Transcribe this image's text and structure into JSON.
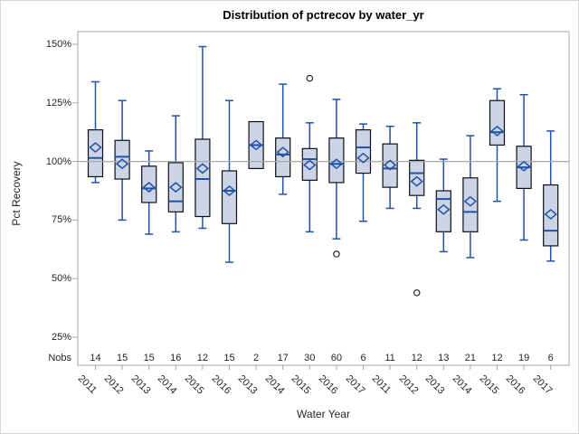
{
  "chart_data": {
    "type": "boxplot",
    "title": "Distribution of pctrecov by water_yr",
    "ylabel": "Pct Recovery",
    "xlabel": "Water Year",
    "nobs_label": "Nobs",
    "grid": false,
    "reference_line": 100,
    "y_axis": {
      "ticks": [
        150,
        125,
        100,
        75,
        50,
        25
      ],
      "suffix": "%",
      "range_shown": [
        13,
        155
      ]
    },
    "groups": [
      {
        "year": "2011",
        "nobs": 14,
        "whisker_low": 91,
        "q1": 93.5,
        "median": 101.5,
        "mean": 106,
        "q3": 113.5,
        "whisker_high": 134,
        "outliers": []
      },
      {
        "year": "2012",
        "nobs": 15,
        "whisker_low": 75,
        "q1": 92.5,
        "median": 102,
        "mean": 99,
        "q3": 109,
        "whisker_high": 126,
        "outliers": []
      },
      {
        "year": "2013",
        "nobs": 15,
        "whisker_low": 69,
        "q1": 82.5,
        "median": 88.5,
        "mean": 89,
        "q3": 98,
        "whisker_high": 104.5,
        "outliers": []
      },
      {
        "year": "2014",
        "nobs": 16,
        "whisker_low": 70,
        "q1": 78.5,
        "median": 83,
        "mean": 89,
        "q3": 99.5,
        "whisker_high": 119.5,
        "outliers": []
      },
      {
        "year": "2015",
        "nobs": 12,
        "whisker_low": 71.5,
        "q1": 76.5,
        "median": 92.5,
        "mean": 97,
        "q3": 109.5,
        "whisker_high": 149,
        "outliers": []
      },
      {
        "year": "2016",
        "nobs": 15,
        "whisker_low": 57,
        "q1": 73.5,
        "median": 87.5,
        "mean": 87.5,
        "q3": 96,
        "whisker_high": 126,
        "outliers": []
      },
      {
        "year": "2013",
        "nobs": 2,
        "whisker_low": null,
        "q1": 97,
        "median": 107,
        "mean": 107,
        "q3": 117,
        "whisker_high": null,
        "outliers": []
      },
      {
        "year": "2014",
        "nobs": 17,
        "whisker_low": 86,
        "q1": 93.5,
        "median": 103,
        "mean": 104,
        "q3": 110,
        "whisker_high": 133,
        "outliers": []
      },
      {
        "year": "2015",
        "nobs": 30,
        "whisker_low": 70,
        "q1": 92,
        "median": 101,
        "mean": 98.5,
        "q3": 105.5,
        "whisker_high": 116.5,
        "outliers": [
          135.5
        ]
      },
      {
        "year": "2016",
        "nobs": 60,
        "whisker_low": 67,
        "q1": 91,
        "median": 99,
        "mean": 99,
        "q3": 110,
        "whisker_high": 126.5,
        "outliers": [
          60.5
        ]
      },
      {
        "year": "2017",
        "nobs": 6,
        "whisker_low": 74.5,
        "q1": 95,
        "median": 106,
        "mean": 101.5,
        "q3": 113.5,
        "whisker_high": 116,
        "outliers": []
      },
      {
        "year": "2011",
        "nobs": 11,
        "whisker_low": 80,
        "q1": 89,
        "median": 97,
        "mean": 98.5,
        "q3": 107.5,
        "whisker_high": 115,
        "outliers": []
      },
      {
        "year": "2012",
        "nobs": 12,
        "whisker_low": 80,
        "q1": 85.5,
        "median": 95,
        "mean": 91.5,
        "q3": 100.5,
        "whisker_high": 116.5,
        "outliers": [
          44
        ]
      },
      {
        "year": "2013",
        "nobs": 13,
        "whisker_low": 61.5,
        "q1": 70,
        "median": 84,
        "mean": 79.5,
        "q3": 87.5,
        "whisker_high": 101,
        "outliers": []
      },
      {
        "year": "2014",
        "nobs": 21,
        "whisker_low": 59,
        "q1": 70,
        "median": 78.5,
        "mean": 83,
        "q3": 93,
        "whisker_high": 111,
        "outliers": []
      },
      {
        "year": "2015",
        "nobs": 12,
        "whisker_low": 83,
        "q1": 107,
        "median": 112.5,
        "mean": 113,
        "q3": 126,
        "whisker_high": 131,
        "outliers": []
      },
      {
        "year": "2016",
        "nobs": 19,
        "whisker_low": 66.5,
        "q1": 88.5,
        "median": 97.5,
        "mean": 98,
        "q3": 106.5,
        "whisker_high": 128.5,
        "outliers": []
      },
      {
        "year": "2017",
        "nobs": 6,
        "whisker_low": 57.5,
        "q1": 64,
        "median": 70.5,
        "mean": 77.5,
        "q3": 90,
        "whisker_high": 113,
        "outliers": []
      }
    ]
  },
  "colors": {
    "box_fill": "#ccd4e6",
    "box_border": "#0d0f14",
    "whisker": "#2053a8",
    "median": "#2053a8",
    "mean_marker": "#2053a8",
    "outlier": "#2b2b2b",
    "reference_line": "#a9a9a9",
    "frame": "#a6a6a6",
    "text": "#262626"
  }
}
